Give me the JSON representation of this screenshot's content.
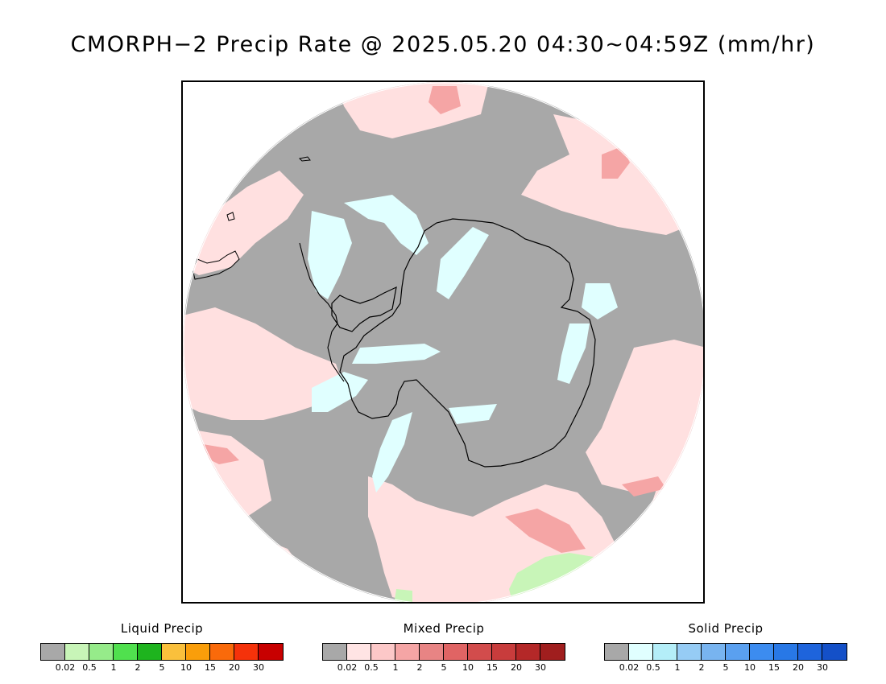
{
  "title": "CMORPH−2 Precip Rate @ 2025.05.20 04:30~04:59Z (mm/hr)",
  "legends": [
    {
      "title": "Liquid Precip",
      "colors": [
        "#a8a8a8",
        "#c8f5b8",
        "#96eb8a",
        "#50e04e",
        "#1eb41e",
        "#fac03c",
        "#fa9e0a",
        "#fa6a0a",
        "#f5320a",
        "#c80000"
      ],
      "ticks": [
        "0.02",
        "0.5",
        "1",
        "2",
        "5",
        "10",
        "15",
        "20",
        "30"
      ]
    },
    {
      "title": "Mixed Precip",
      "colors": [
        "#a8a8a8",
        "#ffe4e4",
        "#fcc8c8",
        "#f5a5a5",
        "#e88484",
        "#e06464",
        "#d24c4c",
        "#c83c3c",
        "#b42828",
        "#a01e1e"
      ],
      "ticks": [
        "0.02",
        "0.5",
        "1",
        "2",
        "5",
        "10",
        "15",
        "20",
        "30"
      ]
    },
    {
      "title": "Solid Precip",
      "colors": [
        "#a8a8a8",
        "#e0ffff",
        "#b4eef8",
        "#96ccf5",
        "#78b4f0",
        "#5aa0f0",
        "#3c8cf0",
        "#2878e6",
        "#1e64dc",
        "#1450c8"
      ],
      "ticks": [
        "0.02",
        "0.5",
        "1",
        "2",
        "5",
        "10",
        "15",
        "20",
        "30"
      ]
    }
  ]
}
